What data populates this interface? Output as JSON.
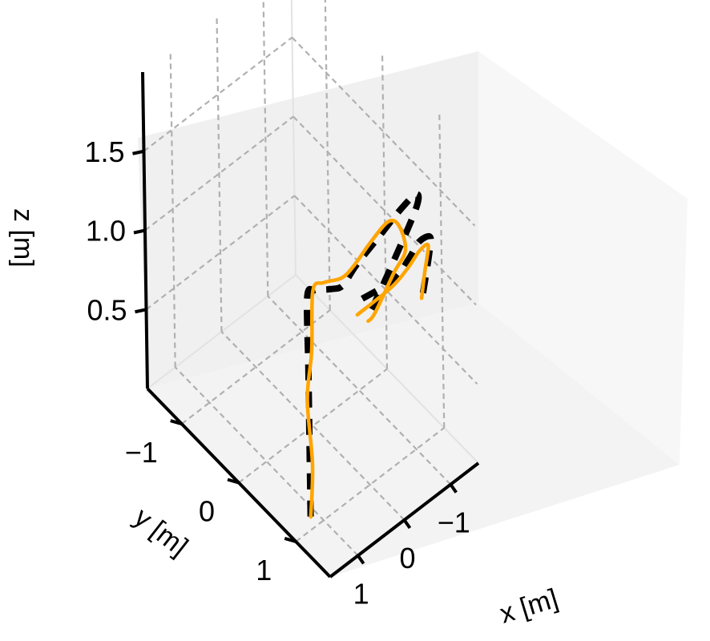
{
  "chart_data": {
    "type": "line-3d",
    "title": "",
    "xlabel": "x [m]",
    "ylabel": "y [m]",
    "zlabel": "z [m]",
    "xlim": [
      -1.6,
      1.6
    ],
    "ylim": [
      -1.6,
      1.6
    ],
    "zlim": [
      0.0,
      2.0
    ],
    "ticks": {
      "x": [
        {
          "value": 1,
          "label": "1"
        },
        {
          "value": 0,
          "label": "0"
        },
        {
          "value": -1,
          "label": "−1"
        }
      ],
      "y": [
        {
          "value": -1,
          "label": "−1"
        },
        {
          "value": 0,
          "label": "0"
        },
        {
          "value": 1,
          "label": "1"
        }
      ],
      "z": [
        {
          "value": 0.5,
          "label": "0.5"
        },
        {
          "value": 1.0,
          "label": "1.0"
        },
        {
          "value": 1.5,
          "label": "1.5"
        }
      ]
    },
    "grid": true,
    "legend": "none",
    "colors": {
      "reference": "#000000",
      "actual": "#FFA500",
      "grid": "#b0b0b0"
    },
    "series": [
      {
        "key": "reference",
        "style": "dashed",
        "points": [
          [
            1.23,
            0.96,
            0.06
          ],
          [
            1.23,
            0.96,
            0.5
          ],
          [
            1.23,
            0.96,
            1.0
          ],
          [
            1.23,
            0.96,
            1.45
          ],
          [
            1.2,
            1.06,
            1.52
          ],
          [
            1.15,
            1.16,
            1.55
          ],
          [
            1.05,
            1.26,
            1.57
          ],
          [
            0.9,
            1.32,
            1.58
          ],
          [
            0.55,
            1.27,
            1.61
          ],
          [
            0.05,
            1.27,
            1.68
          ],
          [
            -0.45,
            1.27,
            1.75
          ],
          [
            -0.85,
            1.2,
            1.72
          ],
          [
            -1.05,
            1.02,
            1.52
          ],
          [
            -1.08,
            0.62,
            1.06
          ],
          [
            -1.08,
            0.24,
            0.63
          ],
          [
            -1.08,
            0.11,
            0.5
          ]
        ]
      },
      {
        "key": "reference-2",
        "style": "dashed",
        "points": [
          [
            -1.05,
            1.12,
            1.02
          ],
          [
            -0.95,
            1.32,
            1.36
          ],
          [
            -0.5,
            1.72,
            1.72
          ],
          [
            -0.05,
            1.9,
            1.86
          ],
          [
            0.35,
            2.04,
            1.89
          ],
          [
            0.65,
            2.02,
            1.82
          ],
          [
            0.98,
            1.7,
            1.65
          ]
        ]
      },
      {
        "key": "actual",
        "style": "solid",
        "points": [
          [
            1.25,
            0.98,
            0.07
          ],
          [
            1.22,
            1.0,
            0.4
          ],
          [
            1.25,
            0.95,
            0.8
          ],
          [
            1.2,
            1.0,
            1.12
          ],
          [
            1.18,
            1.02,
            1.5
          ],
          [
            1.1,
            1.15,
            1.58
          ],
          [
            0.9,
            1.3,
            1.62
          ],
          [
            0.6,
            1.26,
            1.61
          ],
          [
            0.15,
            1.2,
            1.64
          ],
          [
            -0.35,
            1.1,
            1.62
          ],
          [
            -0.7,
            1.0,
            1.48
          ],
          [
            -0.95,
            0.9,
            1.23
          ],
          [
            -1.05,
            0.6,
            0.95
          ],
          [
            -1.0,
            0.3,
            0.6
          ],
          [
            -1.08,
            0.11,
            0.46
          ]
        ]
      },
      {
        "key": "actual-2",
        "style": "solid",
        "points": [
          [
            -1.1,
            1.05,
            0.95
          ],
          [
            -1.0,
            1.2,
            1.2
          ],
          [
            -0.6,
            1.6,
            1.6
          ],
          [
            -0.15,
            1.82,
            1.75
          ],
          [
            0.3,
            1.98,
            1.8
          ],
          [
            0.62,
            1.95,
            1.74
          ],
          [
            0.96,
            1.62,
            1.52
          ]
        ]
      }
    ]
  }
}
